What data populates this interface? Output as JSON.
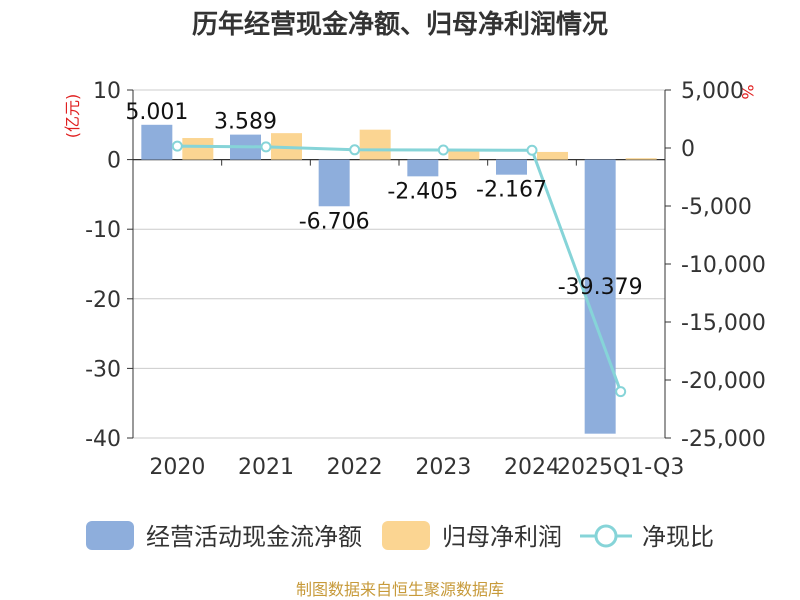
{
  "chart_data": {
    "type": "bar",
    "title": "历年经营现金净额、归母净利润情况",
    "categories": [
      "2020",
      "2021",
      "2022",
      "2023",
      "2024",
      "2025Q1-Q3"
    ],
    "left_axis": {
      "unit": "(亿元)",
      "ticks": [
        "10",
        "0",
        "-10",
        "-20",
        "-30",
        "-40"
      ],
      "ylim": [
        -40,
        10
      ]
    },
    "right_axis": {
      "unit": "%",
      "ticks": [
        "5,000",
        "0",
        "-5,000",
        "-10,000",
        "-15,000",
        "-20,000",
        "-25,000"
      ],
      "ylim": [
        -25000,
        5000
      ]
    },
    "series": [
      {
        "name": "经营活动现金流净额",
        "type": "bar",
        "color": "#8eaedc",
        "values": [
          5.001,
          3.589,
          -6.706,
          -2.405,
          -2.167,
          -39.379
        ],
        "labels": [
          "5.001",
          "3.589",
          "-6.706",
          "-2.405",
          "-2.167",
          "-39.379"
        ]
      },
      {
        "name": "归母净利润",
        "type": "bar",
        "color": "#fbd592",
        "values": [
          3.1,
          3.8,
          4.3,
          1.4,
          1.1,
          0.2
        ]
      },
      {
        "name": "净现比",
        "type": "line",
        "axis": "right",
        "color": "#86d4d8",
        "values": [
          161,
          94,
          -156,
          -172,
          -197,
          -21000
        ]
      }
    ],
    "source": "制图数据来自恒生聚源数据库"
  }
}
